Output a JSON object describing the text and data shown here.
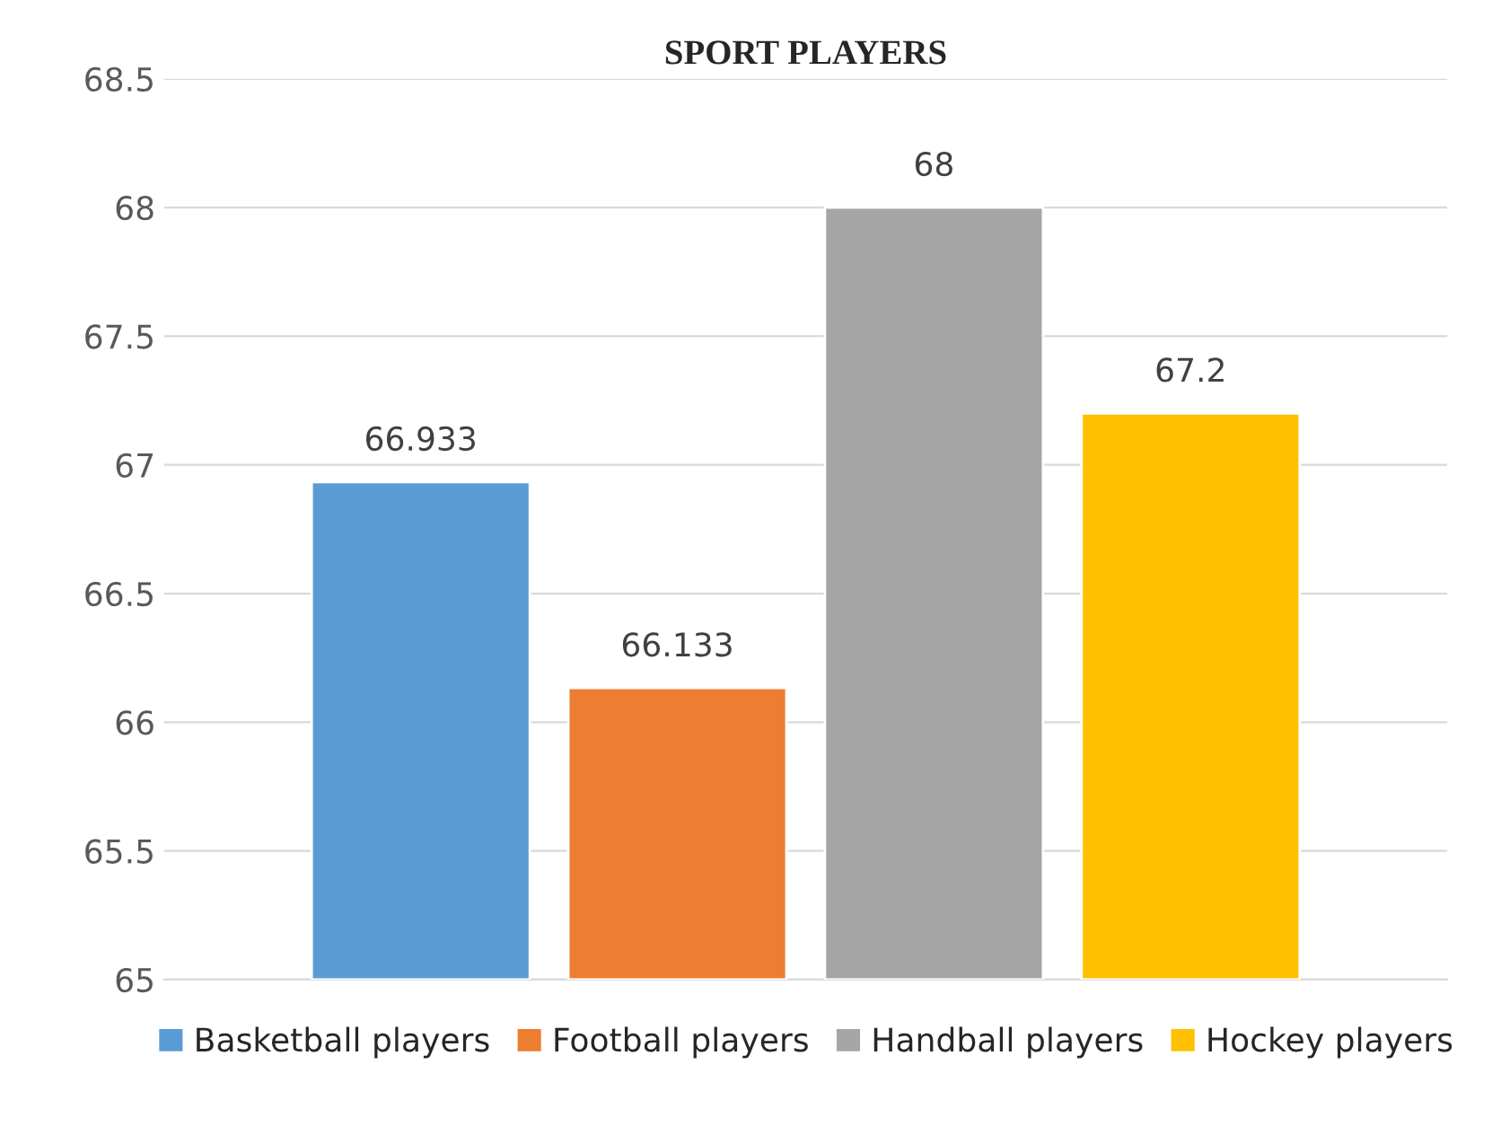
{
  "chart_data": {
    "type": "bar",
    "title": "SPORT PLAYERS",
    "categories": [
      null
    ],
    "series": [
      {
        "name": "Basketball players",
        "color": "#5b9bd5",
        "values": [
          66.933
        ]
      },
      {
        "name": "Football players",
        "color": "#ed7d31",
        "values": [
          66.133
        ]
      },
      {
        "name": "Handball players",
        "color": "#a5a5a5",
        "values": [
          68
        ]
      },
      {
        "name": "Hockey players",
        "color": "#ffc000",
        "values": [
          67.2
        ]
      }
    ],
    "ylim": [
      65,
      68.5
    ],
    "yticks": [
      65,
      65.5,
      66,
      66.5,
      67,
      67.5,
      68,
      68.5
    ],
    "grid": "y",
    "legend": "bottom",
    "data_labels": true
  }
}
